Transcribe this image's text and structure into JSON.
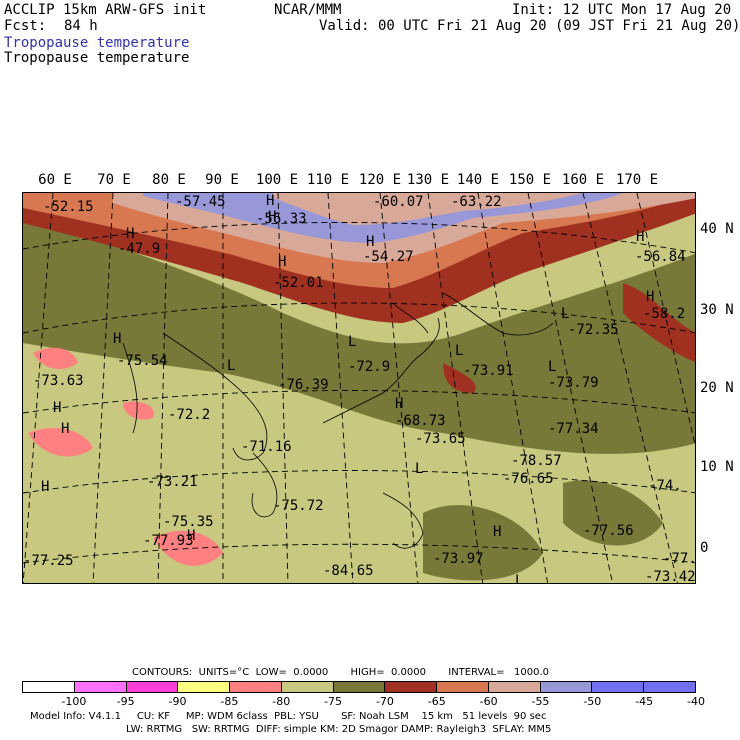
{
  "header": {
    "model": "ACCLIP 15km ARW-GFS init",
    "org": "NCAR/MMM",
    "init": "Init: 12 UTC Mon 17 Aug 20",
    "fcst_label": "Fcst:",
    "fcst_value": "84 h",
    "valid": "Valid: 00 UTC Fri 21 Aug 20 (09 JST Fri 21 Aug 20)",
    "field_1": "Tropopause temperature",
    "field_2": "Tropopause temperature"
  },
  "lon_labels": [
    "60 E",
    "70 E",
    "80 E",
    "90 E",
    "100 E",
    "110 E",
    "120 E",
    "130 E",
    "140 E",
    "150 E",
    "160 E",
    "170 E"
  ],
  "lat_labels": [
    "40 N",
    "30 N",
    "20 N",
    "10 N",
    "0"
  ],
  "map_labels": [
    {
      "t": "-52.15"
    },
    {
      "t": "H"
    },
    {
      "t": "-57.45"
    },
    {
      "t": "H"
    },
    {
      "t": "-56.33"
    },
    {
      "t": "-60.07"
    },
    {
      "t": "-63.22"
    },
    {
      "t": "H"
    },
    {
      "t": "-47.9"
    },
    {
      "t": "H"
    },
    {
      "t": "-54.27"
    },
    {
      "t": "H"
    },
    {
      "t": "-56.84"
    },
    {
      "t": "H"
    },
    {
      "t": "-52.01"
    },
    {
      "t": "H"
    },
    {
      "t": "-58.2"
    },
    {
      "t": "L"
    },
    {
      "t": "-72.35"
    },
    {
      "t": "H"
    },
    {
      "t": "-75.54"
    },
    {
      "t": "L"
    },
    {
      "t": "-72.9"
    },
    {
      "t": "L"
    },
    {
      "t": "-73.91"
    },
    {
      "t": "L"
    },
    {
      "t": "-73.79"
    },
    {
      "t": "-73.63"
    },
    {
      "t": "L"
    },
    {
      "t": "-76.39"
    },
    {
      "t": "H"
    },
    {
      "t": "-72.2"
    },
    {
      "t": "H"
    },
    {
      "t": "-68.73"
    },
    {
      "t": "H"
    },
    {
      "t": "-77.34"
    },
    {
      "t": "-71.16"
    },
    {
      "t": "-73.65"
    },
    {
      "t": "L"
    },
    {
      "t": "-78.57"
    },
    {
      "t": "H"
    },
    {
      "t": "-76.65"
    },
    {
      "t": "-73.21"
    },
    {
      "t": "-75.72"
    },
    {
      "t": "-75.35"
    },
    {
      "t": "H"
    },
    {
      "t": "H"
    },
    {
      "t": "-77.93"
    },
    {
      "t": "-77.56"
    },
    {
      "t": "-77.25"
    },
    {
      "t": "-84.65"
    },
    {
      "t": "-73.97"
    },
    {
      "t": "L"
    },
    {
      "t": "-73.42"
    },
    {
      "t": "-77.0"
    },
    {
      "t": "-74."
    }
  ],
  "contour_info": "CONTOURS:  UNITS=°C  LOW=  0.0000       HIGH=  0.0000       INTERVAL=   1000.0",
  "colorbar": {
    "colors": [
      "#ffffff",
      "#ff70ff",
      "#ff40d8",
      "#ffff80",
      "#ff8080",
      "#c8c880",
      "#787838",
      "#a03020",
      "#d87850",
      "#d8a898",
      "#9898d8",
      "#7070f0",
      "#7070f0"
    ],
    "labels": [
      "-100",
      "-95",
      "-90",
      "-85",
      "-80",
      "-75",
      "-70",
      "-65",
      "-60",
      "-55",
      "-50",
      "-45",
      "-40",
      "°C"
    ]
  },
  "footer": {
    "line1": "Model Info: V4.1.1     CU: KF     MP: WDM 6class  PBL: YSU       SF: Noah LSM    15 km   51 levels  90 sec",
    "line2": "LW: RRTMG   SW: RRTMG  DIFF: simple KM: 2D Smagor DAMP: Rayleigh3  SFLAY: MM5"
  }
}
